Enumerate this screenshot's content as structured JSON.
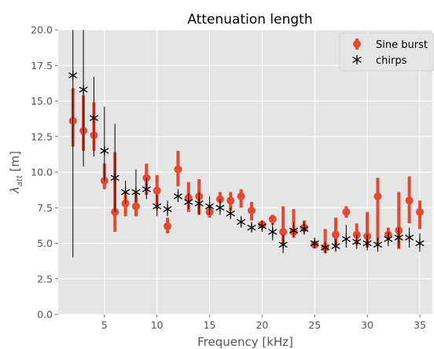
{
  "chart_data": {
    "type": "scatter",
    "title": "Attenuation length",
    "xlabel": "Frequency [kHz]",
    "ylabel": "λ",
    "ylabel_subscript": "att",
    "ylabel_unit": " [m]",
    "xlim": [
      0.6,
      36.2
    ],
    "ylim": [
      0,
      20
    ],
    "xticks": [
      5,
      10,
      15,
      20,
      25,
      30,
      35
    ],
    "xtick_labels": [
      "5",
      "10",
      "15",
      "20",
      "25",
      "30",
      "35"
    ],
    "yticks": [
      0,
      2.5,
      5,
      7.5,
      10,
      12.5,
      15,
      17.5,
      20
    ],
    "ytick_labels": [
      "0.0",
      "2.5",
      "5.0",
      "7.5",
      "10.0",
      "12.5",
      "15.0",
      "17.5",
      "20.0"
    ],
    "grid": true,
    "legend_position": "top-right",
    "background_color": "#e5e5e5",
    "series": [
      {
        "name": "Sine burst",
        "marker": "circle",
        "color": "#e24a33",
        "x": [
          2,
          3,
          4,
          5,
          6,
          7,
          8,
          9,
          10,
          11,
          12,
          13,
          14,
          15,
          16,
          17,
          18,
          19,
          20,
          21,
          22,
          23,
          24,
          25,
          26,
          27,
          28,
          29,
          30,
          31,
          32,
          33,
          34,
          35
        ],
        "y": [
          13.6,
          12.9,
          12.6,
          9.4,
          7.2,
          7.8,
          7.6,
          9.6,
          8.7,
          6.2,
          10.2,
          8.2,
          8.3,
          7.2,
          8.1,
          8.0,
          8.3,
          7.3,
          6.3,
          6.7,
          5.8,
          5.8,
          6.1,
          4.9,
          4.7,
          5.6,
          7.2,
          5.6,
          5.5,
          8.3,
          5.6,
          5.9,
          8.0,
          7.2
        ],
        "err_low": [
          11.8,
          11.5,
          11.5,
          8.8,
          5.8,
          6.9,
          6.9,
          8.4,
          7.4,
          5.7,
          9.0,
          7.2,
          7.0,
          6.8,
          7.8,
          7.3,
          7.5,
          6.6,
          6.1,
          6.3,
          4.9,
          5.4,
          5.8,
          4.7,
          4.3,
          4.9,
          6.8,
          4.9,
          4.7,
          4.8,
          5.3,
          4.6,
          6.4,
          6.0
        ],
        "err_high": [
          15.9,
          15.4,
          14.9,
          10.6,
          11.4,
          8.6,
          8.6,
          10.6,
          9.8,
          6.8,
          11.5,
          9.3,
          9.5,
          7.7,
          8.6,
          8.6,
          8.8,
          7.9,
          6.6,
          7.0,
          7.6,
          7.4,
          6.6,
          5.2,
          6.0,
          6.8,
          7.6,
          6.4,
          7.2,
          9.6,
          6.1,
          8.6,
          9.7,
          8.0
        ]
      },
      {
        "name": "chirps",
        "marker": "asterisk",
        "color": "#000000",
        "x": [
          2,
          3,
          4,
          5,
          6,
          7,
          8,
          9,
          10,
          11,
          12,
          13,
          14,
          15,
          16,
          17,
          18,
          19,
          20,
          21,
          22,
          23,
          24,
          25,
          26,
          27,
          28,
          29,
          30,
          31,
          32,
          33,
          34,
          35
        ],
        "y": [
          16.8,
          15.8,
          13.8,
          11.5,
          9.6,
          8.6,
          8.6,
          8.8,
          7.6,
          7.4,
          8.3,
          7.9,
          7.8,
          7.6,
          7.5,
          7.1,
          6.5,
          6.1,
          6.2,
          5.8,
          4.9,
          5.9,
          6.0,
          5.0,
          4.7,
          4.8,
          5.3,
          5.1,
          5.0,
          4.9,
          5.3,
          5.4,
          5.4,
          5.0
        ],
        "err_low": [
          4.0,
          10.4,
          11.1,
          9.4,
          7.2,
          7.8,
          7.9,
          8.1,
          6.9,
          6.9,
          7.9,
          7.4,
          7.0,
          7.0,
          7.0,
          6.7,
          6.1,
          5.8,
          5.8,
          5.2,
          4.3,
          5.4,
          5.6,
          4.7,
          4.3,
          4.4,
          4.7,
          4.6,
          4.5,
          4.4,
          4.8,
          4.7,
          4.7,
          4.4
        ],
        "err_high": [
          20.0,
          20.0,
          16.7,
          14.6,
          13.4,
          9.4,
          10.2,
          9.6,
          8.4,
          8.0,
          8.8,
          8.5,
          8.6,
          8.3,
          8.1,
          7.5,
          6.9,
          6.5,
          6.6,
          6.4,
          5.6,
          6.5,
          6.5,
          5.4,
          5.1,
          5.3,
          6.3,
          5.6,
          5.6,
          5.4,
          5.8,
          6.1,
          6.1,
          5.7
        ]
      }
    ]
  }
}
